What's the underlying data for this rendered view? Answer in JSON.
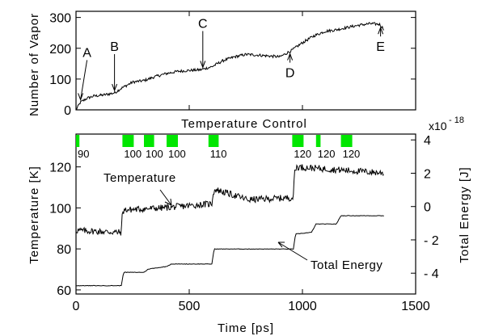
{
  "chart_data": [
    {
      "type": "line",
      "ylabel": "Number of Vapor",
      "xlim": [
        0,
        1500
      ],
      "ylim": [
        0,
        320
      ],
      "yticks": [
        0,
        100,
        200,
        300
      ],
      "series": [
        {
          "x": [
            0,
            20,
            50,
            80,
            120,
            170,
            200,
            250,
            300,
            350,
            400,
            450,
            500,
            550,
            600,
            650,
            700,
            750,
            800,
            850,
            900,
            950,
            1000,
            1050,
            1100,
            1150,
            1200,
            1250,
            1300,
            1340,
            1360
          ],
          "y": [
            0,
            25,
            38,
            45,
            48,
            55,
            70,
            90,
            95,
            108,
            118,
            125,
            128,
            130,
            140,
            160,
            172,
            180,
            178,
            175,
            172,
            192,
            218,
            240,
            255,
            260,
            268,
            275,
            280,
            278,
            262
          ]
        }
      ],
      "annotations": [
        {
          "text": "A",
          "x": 20,
          "y": 25
        },
        {
          "text": "B",
          "x": 170,
          "y": 55
        },
        {
          "text": "C",
          "x": 560,
          "y": 130
        },
        {
          "text": "D",
          "x": 945,
          "y": 190
        },
        {
          "text": "E",
          "x": 1345,
          "y": 275
        }
      ]
    },
    {
      "type": "line",
      "title": "Temperature Control",
      "xlabel": "Time [ps]",
      "ylabel": "Temperature [K]",
      "y2label": "Total Energy [J]",
      "y2_multiplier": "x10",
      "y2_exponent": "- 18",
      "xlim": [
        0,
        1500
      ],
      "xticks": [
        0,
        500,
        1000,
        1500
      ],
      "ylim": [
        58,
        136
      ],
      "yticks": [
        60,
        80,
        100,
        120
      ],
      "y2lim": [
        -5.25,
        4.35
      ],
      "y2ticks": [
        4,
        2,
        0,
        -2,
        -4
      ],
      "y2ticklabels": [
        "4",
        "2",
        "0",
        "- 2",
        "- 4"
      ],
      "temperature_series_label": "Temperature",
      "energy_series_label": "Total Energy",
      "temperature": {
        "x": [
          0,
          200,
          205,
          215,
          380,
          600,
          605,
          615,
          760,
          960,
          965,
          975,
          1360
        ],
        "y": [
          89,
          88,
          98,
          99,
          100,
          102,
          107,
          109,
          104,
          105,
          118,
          120,
          117
        ]
      },
      "energy": {
        "x": [
          0,
          200,
          210,
          300,
          320,
          400,
          420,
          600,
          610,
          960,
          970,
          1040,
          1060,
          1150,
          1170,
          1360
        ],
        "y": [
          -4.75,
          -4.75,
          -3.95,
          -3.95,
          -3.75,
          -3.6,
          -3.45,
          -3.45,
          -2.55,
          -2.55,
          -1.65,
          -1.55,
          -1.05,
          -1.05,
          -0.55,
          -0.55
        ]
      },
      "control_blocks": [
        {
          "start": 0,
          "end": 15,
          "label": "90"
        },
        {
          "start": 205,
          "end": 255,
          "label": "100"
        },
        {
          "start": 300,
          "end": 345,
          "label": "100"
        },
        {
          "start": 400,
          "end": 450,
          "label": "100"
        },
        {
          "start": 585,
          "end": 630,
          "label": "110"
        },
        {
          "start": 955,
          "end": 1005,
          "label": "120"
        },
        {
          "start": 1060,
          "end": 1080,
          "label": "120"
        },
        {
          "start": 1170,
          "end": 1220,
          "label": "120"
        }
      ],
      "block_color": "#00e600",
      "series_colors": [
        "#000000",
        "#000000"
      ]
    }
  ]
}
